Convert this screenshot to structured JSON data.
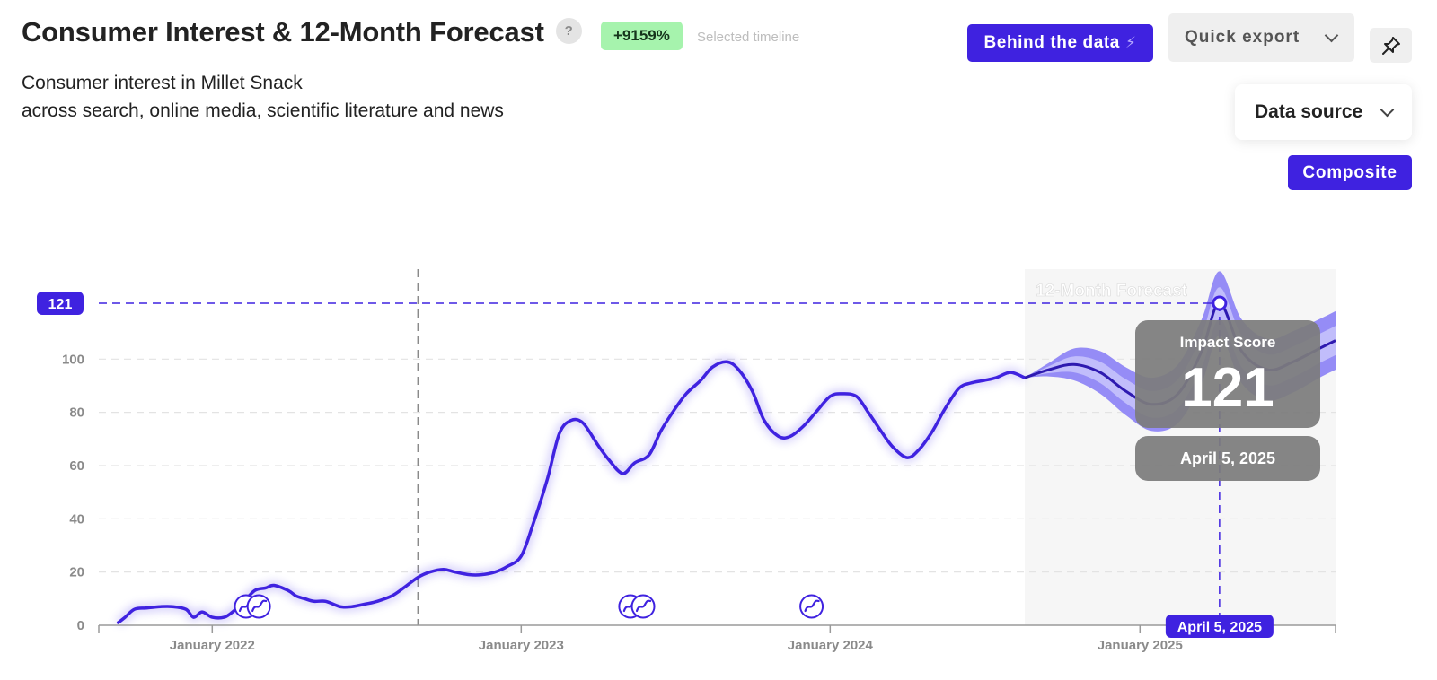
{
  "header": {
    "title": "Consumer Interest & 12-Month Forecast",
    "help": "?",
    "growth_badge": "+9159%",
    "selected_timeline": "Selected timeline",
    "subtitle_line1": "Consumer interest in Millet Snack",
    "subtitle_line2": "across search, online media, scientific literature and news"
  },
  "toolbar": {
    "behind_label": "Behind the data",
    "export_label": "Quick export",
    "data_source_label": "Data source",
    "composite_label": "Composite"
  },
  "icons": {
    "help": "question-icon",
    "behind": "bolt-icon",
    "export": "chevron-down-icon",
    "pin": "pin-icon",
    "data_source": "chevron-down-icon",
    "markers": "trend-event-icon"
  },
  "colors": {
    "accent": "#3f22e0",
    "badge_bg": "#a6f3ad",
    "forecast_band_outer": "#8f86f5",
    "forecast_band_inner": "#c3c0fb",
    "tooltip_bg": "#7c7c7c"
  },
  "chart_data": {
    "type": "line",
    "ylim": [
      0,
      121
    ],
    "y_ticks": [
      0,
      20,
      40,
      60,
      80,
      100
    ],
    "x_tick_labels": [
      "January 2022",
      "January 2023",
      "January 2024",
      "January 2025"
    ],
    "x_tick_dates": [
      "2022-01-01",
      "2023-01-01",
      "2024-01-01",
      "2025-01-01"
    ],
    "x_range": [
      "2021-08-20",
      "2025-08-20"
    ],
    "selected_timeline_start": "2022-09-01",
    "forecast_start": "2024-08-18",
    "forecast_label": "12-Month Forecast",
    "grid": "horizontal-dashed",
    "series": [
      {
        "x": [
          "2021-09-12",
          "2021-09-20",
          "2021-10-01",
          "2021-10-15",
          "2021-11-01",
          "2021-11-15",
          "2021-12-01",
          "2021-12-10",
          "2021-12-20",
          "2022-01-01",
          "2022-01-15",
          "2022-01-25",
          "2022-02-05",
          "2022-02-20",
          "2022-03-05",
          "2022-03-15",
          "2022-04-01",
          "2022-04-10",
          "2022-04-20",
          "2022-05-01",
          "2022-05-15",
          "2022-06-01",
          "2022-06-15",
          "2022-07-01",
          "2022-07-15",
          "2022-08-01",
          "2022-08-15",
          "2022-09-01",
          "2022-09-15",
          "2022-10-01",
          "2022-10-15",
          "2022-11-01",
          "2022-11-15",
          "2022-12-01",
          "2022-12-15",
          "2023-01-01",
          "2023-01-15",
          "2023-02-01",
          "2023-02-15",
          "2023-03-01",
          "2023-03-15",
          "2023-04-01",
          "2023-04-15",
          "2023-05-01",
          "2023-05-15",
          "2023-06-01",
          "2023-06-15",
          "2023-07-01",
          "2023-07-15",
          "2023-08-01",
          "2023-08-15",
          "2023-09-01",
          "2023-09-15",
          "2023-10-01",
          "2023-10-15",
          "2023-11-01",
          "2023-11-15",
          "2023-12-01",
          "2023-12-15",
          "2024-01-01",
          "2024-01-15",
          "2024-02-01",
          "2024-02-15",
          "2024-03-01",
          "2024-03-15",
          "2024-04-01",
          "2024-04-15",
          "2024-05-01",
          "2024-05-15",
          "2024-06-01",
          "2024-06-15",
          "2024-07-01",
          "2024-07-15",
          "2024-08-01",
          "2024-08-18"
        ],
        "values": [
          1,
          3,
          6,
          6.5,
          7,
          7,
          6,
          3,
          5,
          3,
          3,
          5,
          8,
          13,
          14,
          15,
          13,
          11,
          10,
          9,
          9,
          7,
          7,
          8,
          9,
          11,
          14,
          18,
          20,
          21,
          20,
          19,
          19,
          20,
          22,
          26,
          38,
          55,
          72,
          77,
          76,
          68,
          62,
          57,
          61,
          64,
          73,
          81,
          87,
          92,
          97,
          99,
          96,
          88,
          77,
          71,
          71,
          75,
          80,
          86,
          87,
          86,
          80,
          73,
          67,
          63,
          66,
          73,
          81,
          89,
          91,
          92,
          93,
          95,
          93
        ]
      },
      {
        "name": "12-Month Forecast",
        "x": [
          "2024-08-18",
          "2024-09-15",
          "2024-10-15",
          "2024-11-15",
          "2024-12-15",
          "2025-01-15",
          "2025-02-15",
          "2025-03-15",
          "2025-04-05",
          "2025-05-01",
          "2025-06-01",
          "2025-07-01",
          "2025-08-01",
          "2025-08-20"
        ],
        "values": [
          93,
          96,
          98,
          95,
          88,
          83,
          87,
          103,
          121,
          103,
          96,
          99,
          104,
          107
        ],
        "band_outer_halfwidth": [
          0,
          2.5,
          6,
          8,
          9,
          10,
          11,
          12,
          12,
          12,
          11.5,
          11.5,
          11,
          11
        ],
        "band_inner_halfwidth": [
          0,
          1.3,
          3,
          4,
          4.5,
          5,
          5.5,
          6,
          6,
          6,
          5.8,
          5.8,
          5.5,
          5.5
        ]
      }
    ],
    "event_markers": [
      "2022-02-10",
      "2022-02-25",
      "2023-05-10",
      "2023-05-25",
      "2023-12-10"
    ],
    "hover": {
      "date": "2025-04-05",
      "date_label": "April 5, 2025",
      "value": 121,
      "value_label": "121",
      "tooltip_title": "Impact Score"
    }
  }
}
